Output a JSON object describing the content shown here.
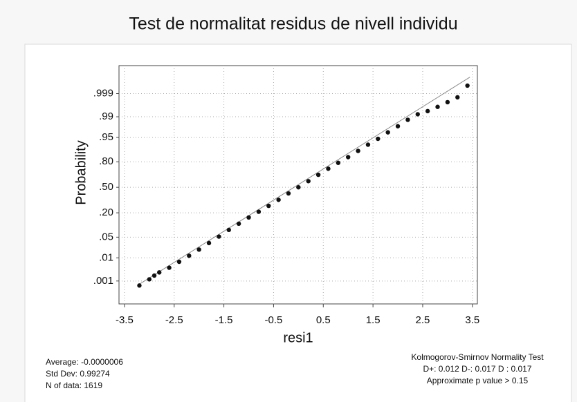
{
  "chart_data": {
    "type": "scatter",
    "yscale": "normal-probability",
    "title": "Test de normalitat residus de nivell individu",
    "xlabel": "resi1",
    "ylabel": "Probability",
    "x": [
      -3.2,
      -3.0,
      -2.9,
      -2.8,
      -2.6,
      -2.4,
      -2.2,
      -2.0,
      -1.8,
      -1.6,
      -1.4,
      -1.2,
      -1.0,
      -0.8,
      -0.6,
      -0.4,
      -0.2,
      0.0,
      0.2,
      0.4,
      0.6,
      0.8,
      1.0,
      1.2,
      1.4,
      1.6,
      1.8,
      2.0,
      2.2,
      2.4,
      2.6,
      2.8,
      3.0,
      3.2,
      3.4
    ],
    "values": [
      0.0006,
      0.0012,
      0.0018,
      0.0025,
      0.004,
      0.007,
      0.012,
      0.02,
      0.033,
      0.052,
      0.08,
      0.115,
      0.16,
      0.21,
      0.27,
      0.34,
      0.42,
      0.5,
      0.58,
      0.66,
      0.73,
      0.79,
      0.84,
      0.885,
      0.92,
      0.945,
      0.965,
      0.978,
      0.987,
      0.992,
      0.994,
      0.996,
      0.9975,
      0.9985,
      0.9996
    ],
    "color": "#111111",
    "reference_line": {
      "x": [
        -3.2,
        3.45
      ],
      "values": [
        0.0007,
        0.99986
      ],
      "color": "#888888"
    },
    "xlim": [
      -3.61,
      3.6
    ],
    "xticks": [
      -3.5,
      -2.5,
      -1.5,
      -0.5,
      0.5,
      1.5,
      2.5,
      3.5
    ],
    "ylim": [
      6e-05,
      0.99997
    ],
    "yticks": [
      {
        "value": 0.001,
        "label": ".001"
      },
      {
        "value": 0.01,
        "label": ".01"
      },
      {
        "value": 0.05,
        "label": ".05"
      },
      {
        "value": 0.2,
        "label": ".20"
      },
      {
        "value": 0.5,
        "label": ".50"
      },
      {
        "value": 0.8,
        "label": ".80"
      },
      {
        "value": 0.95,
        "label": ".95"
      },
      {
        "value": 0.99,
        "label": ".99"
      },
      {
        "value": 0.999,
        "label": ".999"
      }
    ],
    "grid": true,
    "annotations_left": [
      "Average: -0.0000006",
      "Std Dev: 0.99274",
      "N of data: 1619"
    ],
    "annotations_right": [
      "Kolmogorov-Smirnov Normality Test",
      "D+: 0.012  D-: 0.017  D : 0.017",
      "Approximate p value > 0.15"
    ]
  }
}
